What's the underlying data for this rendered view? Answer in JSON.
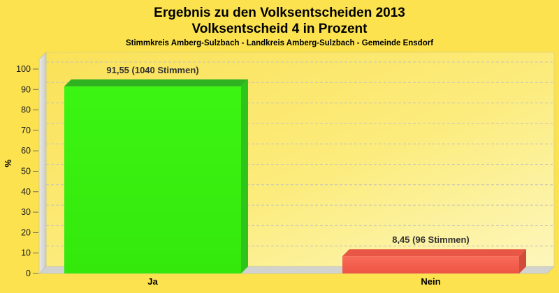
{
  "title": {
    "line1": "Ergebnis zu den Volksentscheiden 2013",
    "line2": "Volksentscheid 4 in Prozent",
    "subtitle": "Stimmkreis Amberg-Sulzbach - Landkreis Amberg-Sulzbach - Gemeinde Ensdorf"
  },
  "chart_data": {
    "type": "bar",
    "style": "3d-horizontal-categories",
    "categories": [
      "Ja",
      "Nein"
    ],
    "values": [
      91.55,
      8.45
    ],
    "votes": [
      1040,
      96
    ],
    "value_labels": [
      "91,55 (1040 Stimmen)",
      "8,45 (96 Stimmen)"
    ],
    "title": "Ergebnis zu den Volksentscheiden 2013 - Volksentscheid 4 in Prozent",
    "xlabel": "",
    "ylabel": "%",
    "ylim": [
      0,
      100
    ],
    "ytick_step": 10,
    "grid": "horizontal-dashed",
    "legend": "none",
    "colors": {
      "page_background": "#FBE24E",
      "plot_gradient_start": "#FAE158",
      "plot_gradient_mid": "#FCEC7D",
      "plot_gradient_end": "#FDF6BC",
      "wall_gray": "#D9D9D6",
      "floor_gray": "#D2D2CF",
      "gridline": "#C4C4BB",
      "bars": [
        {
          "name": "ja-green",
          "front": "#3CF513",
          "front2": "#34E80C",
          "top": "#2EB220",
          "side": "#2EC41A"
        },
        {
          "name": "nein-red",
          "front": "#F96B59",
          "front2": "#EE5443",
          "top": "#E85746",
          "side": "#D24C3E"
        }
      ],
      "value_label_text": "#333333",
      "axis_text": "#1A1A1A"
    }
  }
}
